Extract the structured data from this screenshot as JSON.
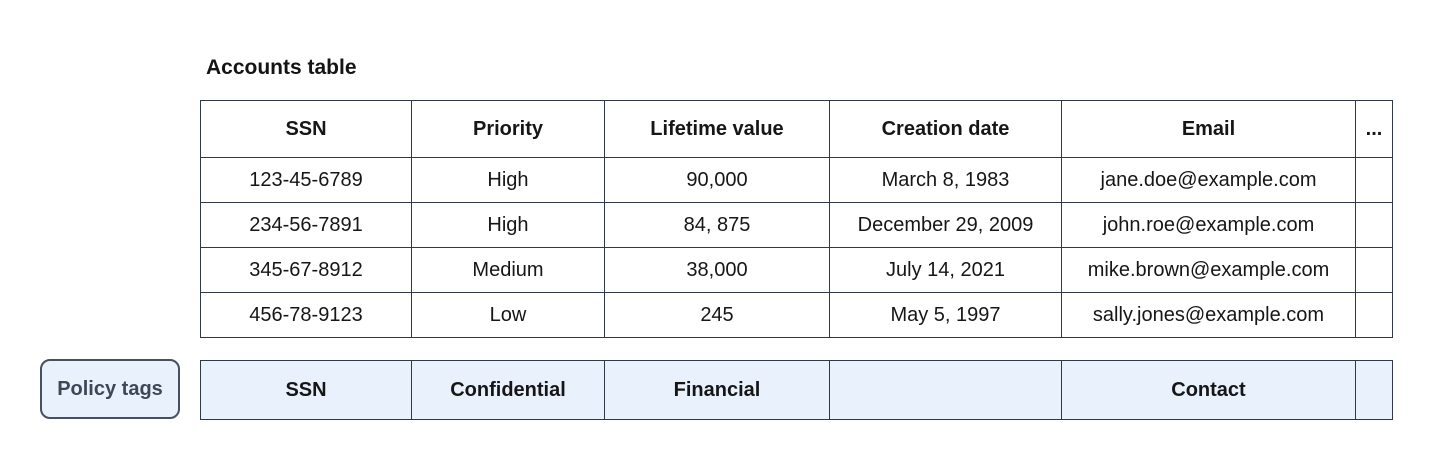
{
  "title": "Accounts table",
  "colors": {
    "table_border": "#303a47",
    "policy_fill": "#e9f1fc",
    "policy_button_border": "#46505e",
    "policy_button_text": "#3e4754",
    "text": "#161616",
    "background": "#ffffff"
  },
  "accounts_table": {
    "headers": [
      "SSN",
      "Priority",
      "Lifetime value",
      "Creation date",
      "Email",
      "..."
    ],
    "rows": [
      [
        "123-45-6789",
        "High",
        "90,000",
        "March 8, 1983",
        "jane.doe@example.com",
        ""
      ],
      [
        "234-56-7891",
        "High",
        "84, 875",
        "December 29, 2009",
        "john.roe@example.com",
        ""
      ],
      [
        "345-67-8912",
        "Medium",
        "38,000",
        "July 14, 2021",
        "mike.brown@example.com",
        ""
      ],
      [
        "456-78-9123",
        "Low",
        "245",
        "May 5, 1997",
        "sally.jones@example.com",
        ""
      ]
    ]
  },
  "policy_tags": {
    "button_label": "Policy tags",
    "tags": [
      "SSN",
      "Confidential",
      "Financial",
      "",
      "Contact",
      ""
    ]
  }
}
